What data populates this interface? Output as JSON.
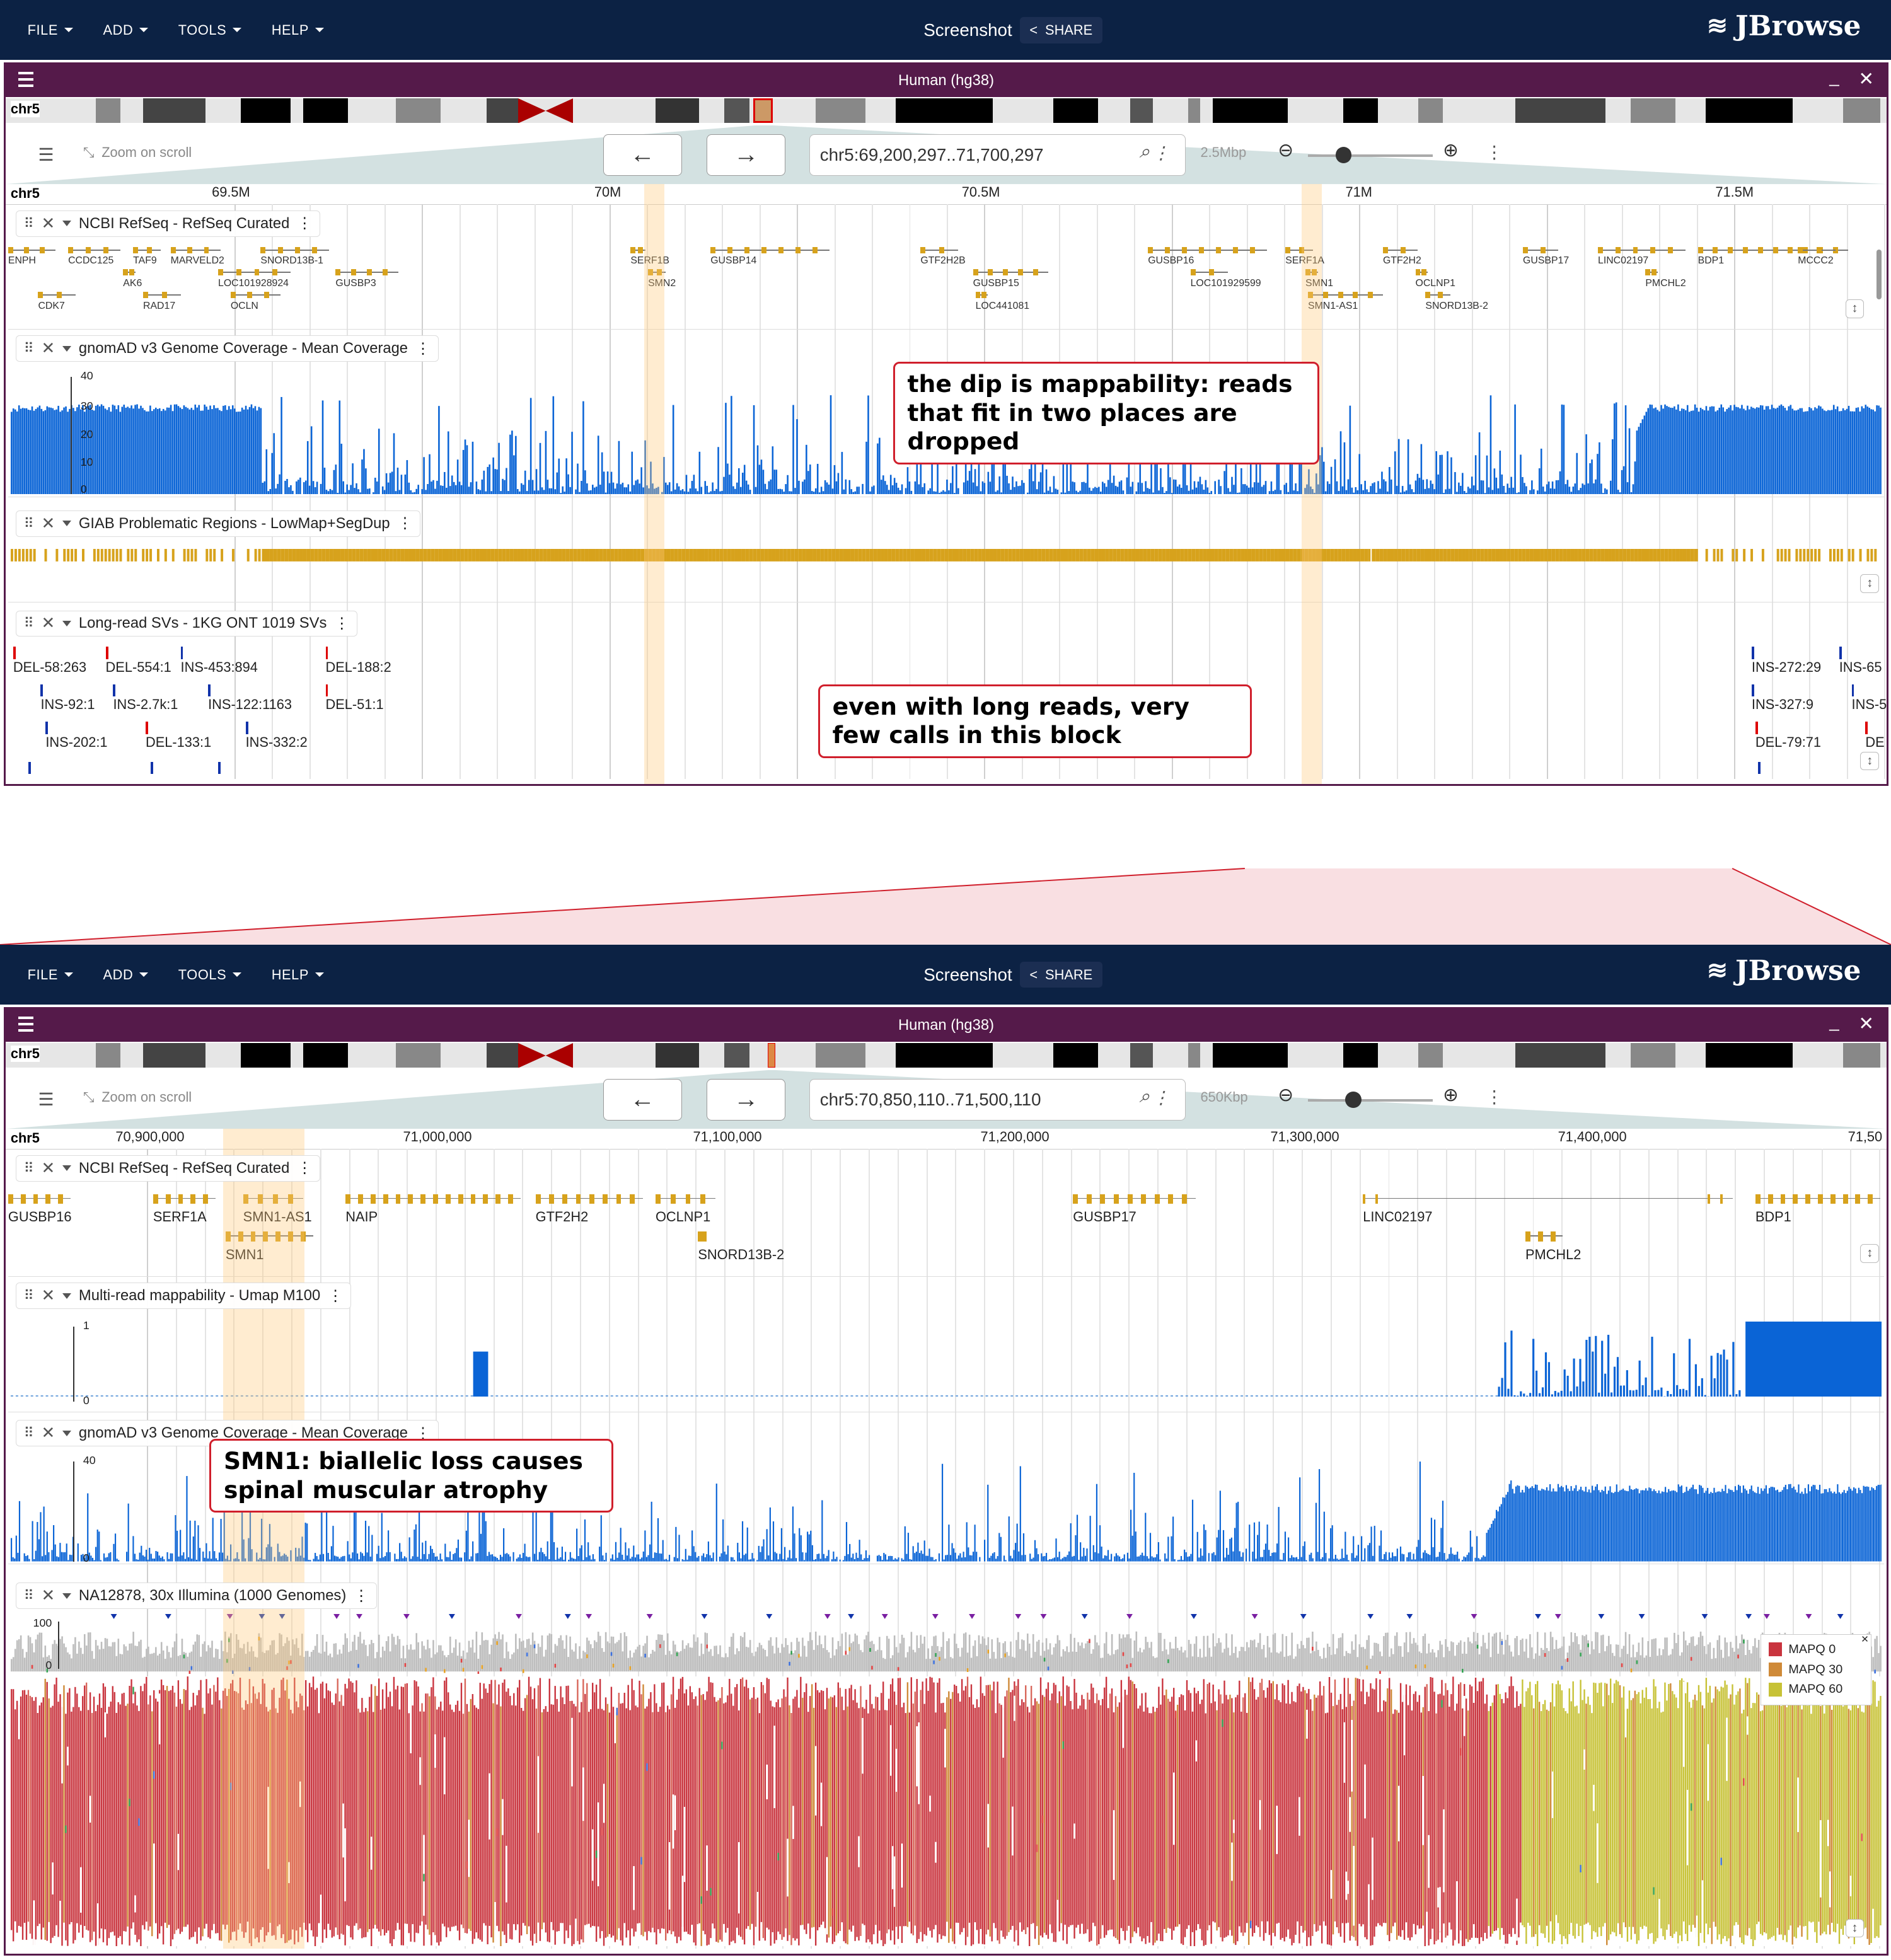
{
  "menu": [
    "FILE",
    "ADD",
    "TOOLS",
    "HELP"
  ],
  "center_title": "Screenshot",
  "share_label": "SHARE",
  "logo_text": "JBrowse",
  "assembly_title": "Human (hg38)",
  "chrom": "chr5",
  "zoom_on_scroll": "Zoom on scroll",
  "top": {
    "locstring": "chr5:69,200,297..71,700,297",
    "span": "2.5Mbp",
    "ruler_ticks": [
      "69.5M",
      "70M",
      "70.5M",
      "71M",
      "71.5M"
    ],
    "tracks": {
      "refseq": "NCBI RefSeq - RefSeq Curated",
      "gnomad": "gnomAD v3 Genome Coverage - Mean Coverage",
      "giab": "GIAB Problematic Regions - LowMap+SegDup",
      "svs": "Long-read SVs - 1KG ONT 1019 SVs"
    },
    "genes": [
      "ENPH",
      "CCDC125",
      "TAF9",
      "MARVELD2",
      "SNORD13B-1",
      "AK6",
      "LOC101928924",
      "GUSBP3",
      "CDK7",
      "RAD17",
      "OCLN",
      "SERF1B",
      "SMN2",
      "GUSBP14",
      "GTF2H2B",
      "GUSBP15",
      "LOC441081",
      "GUSBP16",
      "LOC101929599",
      "SERF1A",
      "SMN1",
      "SMN1-AS1",
      "GTF2H2",
      "OCLNP1",
      "SNORD13B-2",
      "GUSBP17",
      "LINC02197",
      "PMCHL2",
      "BDP1",
      "MCCC2"
    ],
    "gnomad_axis": [
      "40",
      "30",
      "20",
      "10",
      "0"
    ],
    "svs": [
      "DEL-58:263",
      "DEL-554:1",
      "INS-453:894",
      "DEL-188:2",
      "INS-92:1",
      "INS-2.7k:1",
      "INS-122:1163",
      "DEL-51:1",
      "INS-202:1",
      "DEL-133:1",
      "INS-332:2",
      "INS-272:29",
      "INS-65",
      "INS-327:9",
      "INS-5",
      "DEL-79:71",
      "DE"
    ],
    "annot1": "the dip is mappability: reads that fit in two places are dropped",
    "annot2": "even with long reads, very few calls in this block"
  },
  "bottom": {
    "locstring": "chr5:70,850,110..71,500,110",
    "span": "650Kbp",
    "ruler_ticks": [
      "70,900,000",
      "71,000,000",
      "71,100,000",
      "71,200,000",
      "71,300,000",
      "71,400,000",
      "71,50"
    ],
    "tracks": {
      "refseq": "NCBI RefSeq - RefSeq Curated",
      "umap": "Multi-read mappability - Umap M100",
      "gnomad": "gnomAD v3 Genome Coverage - Mean Coverage",
      "reads": "NA12878, 30x Illumina (1000 Genomes)"
    },
    "genes": [
      "GUSBP16",
      "SERF1A",
      "SMN1-AS1",
      "SMN1",
      "NAIP",
      "GTF2H2",
      "OCLNP1",
      "SNORD13B-2",
      "GUSBP17",
      "LINC02197",
      "PMCHL2",
      "BDP1"
    ],
    "umap_axis": [
      "1",
      "0"
    ],
    "gnomad_axis": [
      "40",
      "0"
    ],
    "reads_axis": [
      "100",
      "0"
    ],
    "legend": [
      "MAPQ 0",
      "MAPQ 30",
      "MAPQ 60"
    ],
    "legend_close": "×",
    "annot": "SMN1: biallelic loss causes spinal muscular atrophy"
  },
  "colors": {
    "appbar": "#0c2244",
    "view_header": "#551a4a",
    "coverage": "#0a64d6",
    "exon": "#d7a21c",
    "annotation_border": "#d01f2c",
    "highlight": "#ffc878",
    "mapq0": "#c9343e",
    "mapq30": "#cf8a38",
    "mapq60": "#c7c236"
  }
}
